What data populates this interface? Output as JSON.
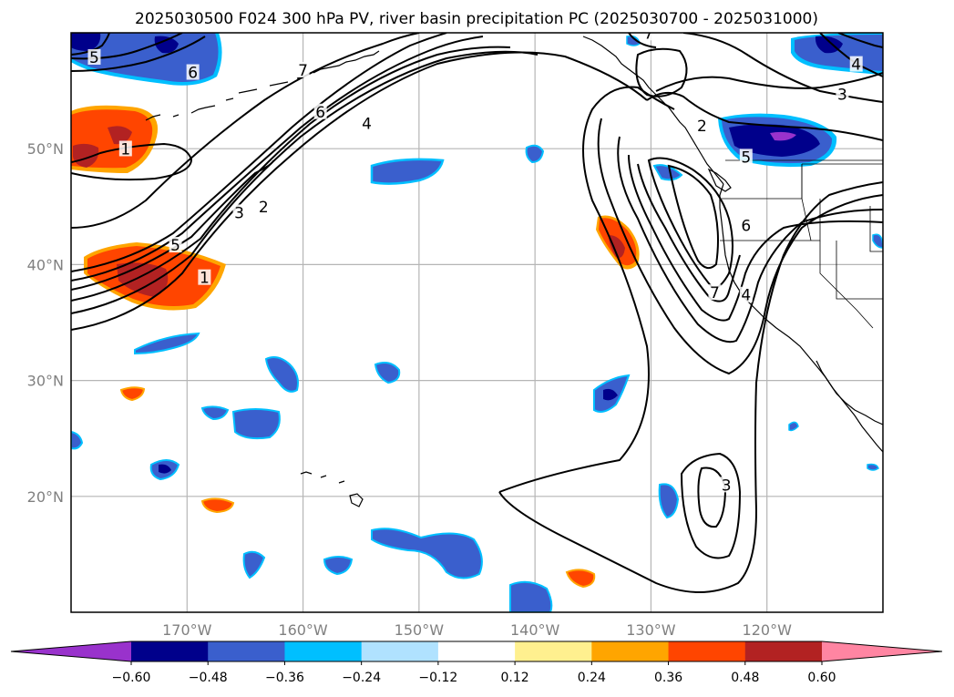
{
  "title": "2025030500 F024 300 hPa PV, river basin precipitation PC (2025030700 - 2025031000)",
  "map": {
    "lon_range": [
      -180,
      -110
    ],
    "lat_range": [
      10,
      60
    ],
    "gridlines": true,
    "lon_ticks": [
      {
        "value": -170,
        "label": "170°W"
      },
      {
        "value": -160,
        "label": "160°W"
      },
      {
        "value": -150,
        "label": "150°W"
      },
      {
        "value": -140,
        "label": "140°W"
      },
      {
        "value": -130,
        "label": "130°W"
      },
      {
        "value": -120,
        "label": "120°W"
      }
    ],
    "lat_ticks": [
      {
        "value": 50,
        "label": "50°N"
      },
      {
        "value": 40,
        "label": "40°N"
      },
      {
        "value": 30,
        "label": "30°N"
      },
      {
        "value": 20,
        "label": "20°N"
      }
    ],
    "pv_contour_labels": [
      {
        "text": "5",
        "lon": -178,
        "lat": 57.8
      },
      {
        "text": "6",
        "lon": -169.5,
        "lat": 56.5
      },
      {
        "text": "7",
        "lon": -160,
        "lat": 56.7
      },
      {
        "text": "6",
        "lon": -158.5,
        "lat": 53.1
      },
      {
        "text": "4",
        "lon": -154.5,
        "lat": 52.1
      },
      {
        "text": "1",
        "lon": -175.3,
        "lat": 49.9
      },
      {
        "text": "3",
        "lon": -165.5,
        "lat": 44.4
      },
      {
        "text": "2",
        "lon": -163.4,
        "lat": 44.9
      },
      {
        "text": "5",
        "lon": -171,
        "lat": 41.6
      },
      {
        "text": "1",
        "lon": -168.5,
        "lat": 38.8
      },
      {
        "text": "7",
        "lon": -130.2,
        "lat": 59.9
      },
      {
        "text": "2",
        "lon": -125.6,
        "lat": 51.9
      },
      {
        "text": "5",
        "lon": -121.8,
        "lat": 49.2
      },
      {
        "text": "6",
        "lon": -121.8,
        "lat": 43.3
      },
      {
        "text": "7",
        "lon": -124.5,
        "lat": 37.5
      },
      {
        "text": "4",
        "lon": -121.8,
        "lat": 37.3
      },
      {
        "text": "3",
        "lon": -123.5,
        "lat": 20.9
      },
      {
        "text": "4",
        "lon": -112.3,
        "lat": 57.2
      },
      {
        "text": "3",
        "lon": -113.5,
        "lat": 54.6
      }
    ],
    "pc_anomaly_regions": [
      {
        "sign": "positive",
        "lon": -175.7,
        "lat": 51,
        "value": 0.48
      },
      {
        "sign": "positive",
        "lon": -172,
        "lat": 39.4,
        "value": 0.48
      },
      {
        "sign": "positive",
        "lon": -131.6,
        "lat": 42,
        "value": 0.48
      },
      {
        "sign": "positive",
        "lon": -174.8,
        "lat": 28.9,
        "value": 0.36
      },
      {
        "sign": "positive",
        "lon": -167.3,
        "lat": 19.2,
        "value": 0.36
      },
      {
        "sign": "positive",
        "lon": -135.5,
        "lat": 13.1,
        "value": 0.36
      },
      {
        "sign": "negative",
        "lon": -174,
        "lat": 57.7,
        "value": -0.48
      },
      {
        "sign": "negative",
        "lon": -117.8,
        "lat": 50.7,
        "value": -0.6
      },
      {
        "sign": "negative",
        "lon": -114.5,
        "lat": 58,
        "value": -0.48
      },
      {
        "sign": "negative",
        "lon": -153.5,
        "lat": 48.7,
        "value": -0.36
      },
      {
        "sign": "negative",
        "lon": -167.6,
        "lat": 33.5,
        "value": -0.36
      },
      {
        "sign": "negative",
        "lon": -163.8,
        "lat": 31.4,
        "value": -0.36
      },
      {
        "sign": "negative",
        "lon": -162.2,
        "lat": 25.5,
        "value": -0.36
      },
      {
        "sign": "negative",
        "lon": -152.3,
        "lat": 30.8,
        "value": -0.36
      },
      {
        "sign": "negative",
        "lon": -133.1,
        "lat": 28.6,
        "value": -0.48
      },
      {
        "sign": "negative",
        "lon": -172,
        "lat": 22.6,
        "value": -0.48
      },
      {
        "sign": "negative",
        "lon": -150.3,
        "lat": 14.3,
        "value": -0.36
      },
      {
        "sign": "negative",
        "lon": -144,
        "lat": 13.5,
        "value": -0.36
      },
      {
        "sign": "negative",
        "lon": -163.6,
        "lat": 14.1,
        "value": -0.36
      },
      {
        "sign": "negative",
        "lon": -142,
        "lat": 11.2,
        "value": -0.36
      },
      {
        "sign": "negative",
        "lon": -128.2,
        "lat": 19.8,
        "value": -0.48
      },
      {
        "sign": "negative",
        "lon": -139,
        "lat": 49.7,
        "value": -0.36
      }
    ]
  },
  "colorbar": {
    "levels": [
      -0.72,
      -0.6,
      -0.48,
      -0.36,
      -0.24,
      -0.12,
      0.12,
      0.24,
      0.36,
      0.48,
      0.6,
      0.72
    ],
    "colors": [
      "#9932cc",
      "#00008b",
      "#3a5fcd",
      "#00bfff",
      "#b0e2ff",
      "#ffffff",
      "#fff08f",
      "#ffa500",
      "#ff4500",
      "#b22222",
      "#ff85a2"
    ],
    "labels": [
      "−0.60",
      "−0.48",
      "−0.36",
      "−0.24",
      "−0.12",
      "0.12",
      "0.24",
      "0.36",
      "0.48",
      "0.60"
    ]
  }
}
